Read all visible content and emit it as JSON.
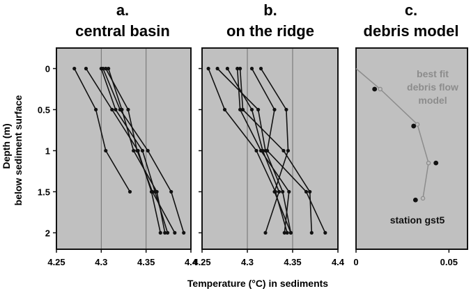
{
  "figure": {
    "ylabel_line1": "Depth (m)",
    "ylabel_line2": "below sediment surface",
    "xlabel": "Temperature (°C) in sediments"
  },
  "chart_data": [
    {
      "type": "line",
      "title_line1": "a.",
      "title_line2": "central basin",
      "xlim": [
        4.25,
        4.4
      ],
      "ylim": [
        2.2,
        -0.25
      ],
      "x_ticks": [
        "4.25",
        "4.3",
        "4.35",
        "4.4"
      ],
      "x_tick_values": [
        4.25,
        4.3,
        4.35,
        4.4
      ],
      "y_ticks": [
        "0",
        "0.5",
        "1",
        "1.5",
        "2"
      ],
      "y_tick_values": [
        0,
        0.5,
        1,
        1.5,
        2
      ],
      "vgrid": [
        4.3,
        4.35
      ],
      "series": [
        {
          "points": [
            [
              4.27,
              0
            ],
            [
              4.294,
              0.5
            ],
            [
              4.305,
              1
            ],
            [
              4.332,
              1.5
            ]
          ]
        },
        {
          "points": [
            [
              4.283,
              0
            ],
            [
              4.312,
              0.5
            ],
            [
              4.341,
              1
            ],
            [
              4.356,
              1.5
            ],
            [
              4.366,
              2
            ]
          ]
        },
        {
          "points": [
            [
              4.3,
              0
            ],
            [
              4.316,
              0.5
            ],
            [
              4.346,
              1
            ],
            [
              4.36,
              1.5
            ],
            [
              4.374,
              2
            ]
          ]
        },
        {
          "points": [
            [
              4.302,
              0
            ],
            [
              4.321,
              0.5
            ],
            [
              4.352,
              1
            ],
            [
              4.378,
              1.5
            ],
            [
              4.392,
              2
            ]
          ]
        },
        {
          "points": [
            [
              4.305,
              0
            ],
            [
              4.33,
              0.5
            ],
            [
              4.34,
              1
            ],
            [
              4.357,
              1.5
            ],
            [
              4.382,
              2
            ]
          ]
        },
        {
          "points": [
            [
              4.308,
              0
            ],
            [
              4.323,
              0.5
            ],
            [
              4.336,
              1
            ],
            [
              4.362,
              1.5
            ],
            [
              4.371,
              2
            ]
          ]
        }
      ]
    },
    {
      "type": "line",
      "title_line1": "b.",
      "title_line2": "on the ridge",
      "xlim": [
        4.25,
        4.4
      ],
      "ylim": [
        2.2,
        -0.25
      ],
      "x_ticks": [
        "4.25",
        "4.3",
        "4.35",
        "4.4"
      ],
      "x_tick_values": [
        4.25,
        4.3,
        4.35,
        4.4
      ],
      "y_ticks": [],
      "y_tick_values": [
        0,
        0.5,
        1,
        1.5,
        2
      ],
      "vgrid": [
        4.3,
        4.35
      ],
      "series": [
        {
          "points": [
            [
              4.257,
              0
            ],
            [
              4.275,
              0.5
            ],
            [
              4.31,
              1
            ],
            [
              4.331,
              1.5
            ],
            [
              4.344,
              2
            ]
          ]
        },
        {
          "points": [
            [
              4.267,
              0
            ],
            [
              4.312,
              0.5
            ],
            [
              4.32,
              1
            ],
            [
              4.339,
              1.5
            ],
            [
              4.348,
              2
            ]
          ]
        },
        {
          "points": [
            [
              4.278,
              0
            ],
            [
              4.305,
              0.5
            ],
            [
              4.317,
              1
            ],
            [
              4.335,
              1.5
            ],
            [
              4.32,
              2
            ]
          ]
        },
        {
          "points": [
            [
              4.289,
              0
            ],
            [
              4.292,
              0.5
            ],
            [
              4.315,
              1
            ],
            [
              4.346,
              1.5
            ],
            [
              4.341,
              2
            ]
          ]
        },
        {
          "points": [
            [
              4.292,
              0
            ],
            [
              4.295,
              0.5
            ],
            [
              4.34,
              1
            ],
            [
              4.369,
              1.5
            ],
            [
              4.371,
              2
            ]
          ]
        },
        {
          "points": [
            [
              4.305,
              0
            ],
            [
              4.33,
              0.5
            ],
            [
              4.322,
              1
            ],
            [
              4.365,
              1.5
            ],
            [
              4.386,
              2
            ]
          ]
        },
        {
          "points": [
            [
              4.315,
              0
            ],
            [
              4.343,
              0.5
            ],
            [
              4.345,
              1
            ],
            [
              4.33,
              1.5
            ],
            [
              4.348,
              2
            ]
          ]
        }
      ]
    },
    {
      "type": "scatter",
      "title_line1": "c.",
      "title_line2": "debris model",
      "xlim": [
        0,
        0.06
      ],
      "ylim": [
        2.2,
        -0.25
      ],
      "x_ticks": [
        "0",
        "0.05"
      ],
      "x_tick_values": [
        0,
        0.05
      ],
      "y_ticks": [],
      "y_tick_values": [],
      "vgrid": [],
      "observed": [
        [
          0.01,
          0.25
        ],
        [
          0.031,
          0.7
        ],
        [
          0.043,
          1.15
        ],
        [
          0.032,
          1.6
        ]
      ],
      "model": [
        [
          0,
          0
        ],
        [
          0.013,
          0.25
        ],
        [
          0.033,
          0.68
        ],
        [
          0.039,
          1.15
        ],
        [
          0.036,
          1.58
        ]
      ],
      "model_label_lines": [
        "best fit",
        "debris flow",
        "model"
      ],
      "observed_label": "station gst5",
      "model_color": "#8c8c8c",
      "observed_color": "#111111"
    }
  ],
  "colors": {
    "panel_bg": "#c0c0c0",
    "grid": "#6e6e6e",
    "line": "#111111"
  }
}
